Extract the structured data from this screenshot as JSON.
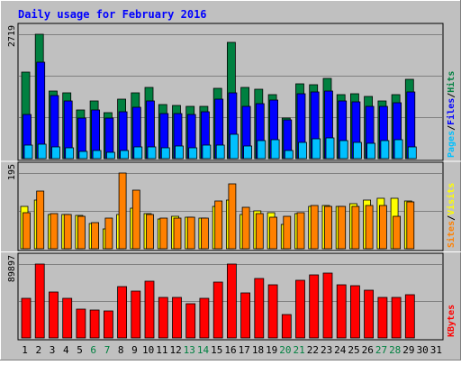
{
  "chart_data": {
    "type": "bar",
    "title": "Daily usage for February 2016",
    "days": [
      "1",
      "2",
      "3",
      "4",
      "5",
      "6",
      "7",
      "8",
      "9",
      "10",
      "11",
      "12",
      "13",
      "14",
      "15",
      "16",
      "17",
      "18",
      "19",
      "20",
      "21",
      "22",
      "23",
      "24",
      "25",
      "26",
      "27",
      "28",
      "29",
      "30",
      "31"
    ],
    "weekend_days": [
      "6",
      "7",
      "13",
      "14",
      "20",
      "21",
      "27",
      "28"
    ],
    "panels": [
      {
        "id": "hits-files-pages",
        "ymax": 2719,
        "ymax_label": "2719",
        "right_label_parts": [
          "Pages",
          "/",
          "Files",
          "/",
          "Hits"
        ],
        "series": [
          {
            "name": "Hits",
            "color": "#008040",
            "values": [
              1890,
              2719,
              1480,
              1430,
              1070,
              1260,
              1000,
              1300,
              1440,
              1560,
              1180,
              1160,
              1140,
              1140,
              1540,
              2540,
              1550,
              1520,
              1400,
              880,
              1640,
              1610,
              1750,
              1400,
              1410,
              1350,
              1270,
              1390,
              1740
            ]
          },
          {
            "name": "Files",
            "color": "#0000ff",
            "values": [
              960,
              2100,
              1380,
              1260,
              890,
              1060,
              880,
              1030,
              1120,
              1270,
              980,
              990,
              960,
              1030,
              1310,
              1430,
              1140,
              1210,
              1280,
              840,
              1420,
              1460,
              1480,
              1270,
              1250,
              1150,
              1150,
              1220,
              1460
            ]
          },
          {
            "name": "Pages",
            "color": "#00c0ff",
            "values": [
              300,
              320,
              250,
              240,
              160,
              170,
              130,
              170,
              260,
              260,
              240,
              270,
              240,
              290,
              300,
              540,
              280,
              400,
              420,
              180,
              360,
              430,
              460,
              400,
              360,
              330,
              400,
              420,
              260
            ]
          }
        ]
      },
      {
        "id": "visits-sites",
        "ymax": 195,
        "ymax_label": "195",
        "right_label_parts": [
          "Sites",
          "/",
          "Visits"
        ],
        "series": [
          {
            "name": "Visits",
            "color": "#ffff00",
            "values": [
              110,
              125,
              88,
              88,
              86,
              66,
              50,
              88,
              104,
              90,
              76,
              84,
              82,
              80,
              110,
              126,
              88,
              98,
              94,
              62,
              90,
              110,
              112,
              108,
              116,
              126,
              130,
              130,
              124
            ]
          },
          {
            "name": "Sites",
            "color": "#ff8000",
            "values": [
              92,
              148,
              90,
              89,
              84,
              68,
              78,
              195,
              152,
              89,
              78,
              80,
              82,
              80,
              124,
              168,
              106,
              90,
              82,
              84,
              94,
              112,
              108,
              108,
              108,
              112,
              112,
              84,
              120
            ]
          }
        ]
      },
      {
        "id": "kbytes",
        "ymax": 89897,
        "ymax_label": "89897",
        "right_label_parts": [
          "KBytes"
        ],
        "series": [
          {
            "name": "KBytes",
            "color": "#ff0000",
            "values": [
              47800,
              89897,
              55400,
              47900,
              35000,
              33800,
              32700,
              62400,
              56900,
              69000,
              49500,
              49500,
              42200,
              48600,
              67500,
              89897,
              54700,
              72600,
              65000,
              28800,
              69700,
              76800,
              79200,
              64600,
              63500,
              58500,
              49800,
              49200,
              52100
            ]
          }
        ]
      }
    ],
    "colors": {
      "frame": "#c0c0c0",
      "plot": "#c0c0c0",
      "grid": "#808080",
      "title": "#0000ff",
      "weekday_label": "#000000",
      "weekend_label": "#008040",
      "separator": "#ffffff",
      "label_separator": "#000000"
    }
  }
}
